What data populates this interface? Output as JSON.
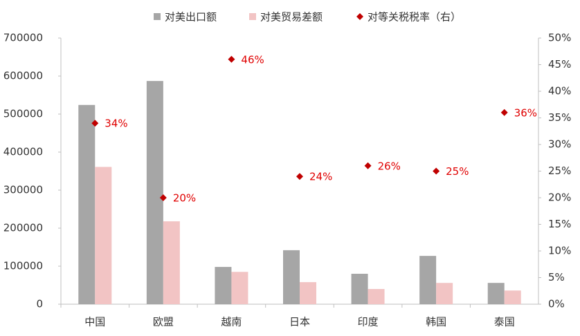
{
  "chart_data": {
    "type": "bar",
    "categories": [
      "中国",
      "欧盟",
      "越南",
      "日本",
      "印度",
      "韩国",
      "泰国"
    ],
    "series": [
      {
        "name": "对美出口额",
        "color": "#a6a6a6",
        "values": [
          524000,
          587000,
          98000,
          142000,
          80000,
          127000,
          56000
        ]
      },
      {
        "name": "对美贸易差额",
        "color": "#f2c4c4",
        "values": [
          361000,
          218000,
          85000,
          58000,
          40000,
          56000,
          36000
        ]
      },
      {
        "name": "对等关税税率（右）",
        "color": "#c00000",
        "axis": "y2",
        "marker": "diamond",
        "values": [
          34,
          20,
          46,
          24,
          26,
          25,
          36
        ],
        "value_labels": [
          "34%",
          "20%",
          "46%",
          "24%",
          "26%",
          "25%",
          "36%"
        ]
      }
    ],
    "ylim": [
      0,
      700000
    ],
    "yticks": [
      0,
      100000,
      200000,
      300000,
      400000,
      500000,
      600000,
      700000
    ],
    "y2lim": [
      0,
      50
    ],
    "y2ticks": [
      {
        "value": 0,
        "label": "0%"
      },
      {
        "value": 5,
        "label": "5%"
      },
      {
        "value": 10,
        "label": "10%"
      },
      {
        "value": 15,
        "label": "15%"
      },
      {
        "value": 20,
        "label": "20%"
      },
      {
        "value": 25,
        "label": "25%"
      },
      {
        "value": 30,
        "label": "30%"
      },
      {
        "value": 35,
        "label": "35%"
      },
      {
        "value": 40,
        "label": "40%"
      },
      {
        "value": 45,
        "label": "45%"
      },
      {
        "value": 50,
        "label": "50%"
      }
    ],
    "grid": false,
    "legend": "top"
  }
}
